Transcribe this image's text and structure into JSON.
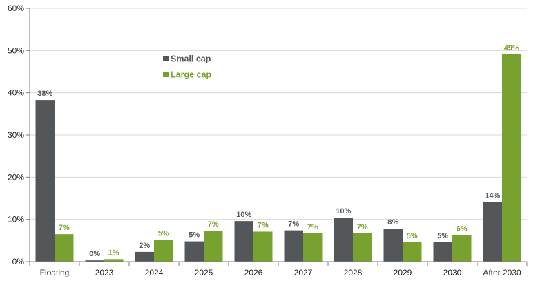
{
  "chart_data": {
    "type": "bar",
    "categories": [
      "Floating",
      "2023",
      "2024",
      "2025",
      "2026",
      "2027",
      "2028",
      "2029",
      "2030",
      "After 2030"
    ],
    "series": [
      {
        "name": "Small cap",
        "color": "#54575a",
        "values": [
          38.3,
          0.3,
          2.3,
          4.8,
          9.6,
          7.4,
          10.4,
          7.8,
          4.6,
          14.1
        ],
        "labels": [
          "38%",
          "0%",
          "2%",
          "5%",
          "10%",
          "7%",
          "10%",
          "8%",
          "5%",
          "14%"
        ]
      },
      {
        "name": "Large cap",
        "color": "#78a22f",
        "values": [
          6.5,
          0.6,
          5.1,
          7.3,
          7.1,
          6.7,
          6.7,
          4.6,
          6.3,
          49.1
        ],
        "labels": [
          "7%",
          "1%",
          "5%",
          "7%",
          "7%",
          "7%",
          "7%",
          "5%",
          "6%",
          "49%"
        ]
      }
    ],
    "ylim": [
      0,
      60
    ],
    "yticks": [
      0,
      10,
      20,
      30,
      40,
      50,
      60
    ],
    "ytick_labels": [
      "0%",
      "10%",
      "20%",
      "30%",
      "40%",
      "50%",
      "60%"
    ],
    "title": "",
    "xlabel": "",
    "ylabel": "",
    "grid": true,
    "legend_position": "upper-left-inside"
  }
}
